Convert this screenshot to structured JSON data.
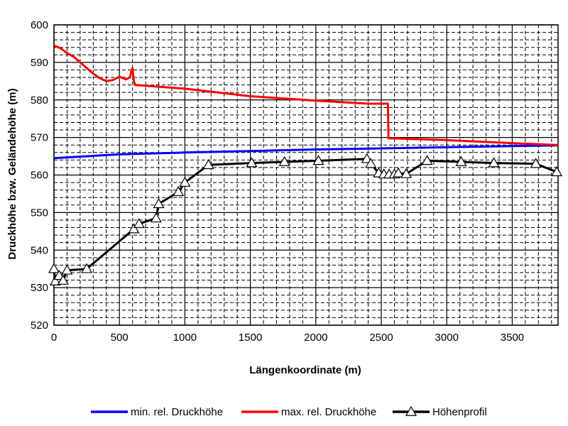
{
  "chart_data": {
    "type": "line",
    "xlabel": "Längenkoordinate (m)",
    "ylabel": "Druckhöhe  bzw. Geländehöhe (m)",
    "xlim": [
      0,
      3850
    ],
    "ylim": [
      520,
      600
    ],
    "x_ticks": [
      0,
      500,
      1000,
      1500,
      2000,
      2500,
      3000,
      3500
    ],
    "y_ticks": [
      520,
      530,
      540,
      550,
      560,
      570,
      580,
      590,
      600
    ],
    "x_tick_labels": [
      "0",
      "500",
      "1000",
      "1500",
      "2000",
      "2500",
      "3000",
      "3500"
    ],
    "y_tick_labels": [
      "520",
      "530",
      "540",
      "550",
      "560",
      "570",
      "580",
      "590",
      "600"
    ],
    "grid": true,
    "legend_position": "bottom",
    "series": [
      {
        "name": "min. rel. Druckhöhe",
        "color": "#0000ff",
        "marker": "none",
        "x": [
          0,
          500,
          1000,
          1500,
          2000,
          2500,
          3000,
          3500,
          3850
        ],
        "y": [
          564.5,
          565.5,
          566.0,
          566.4,
          566.8,
          567.1,
          567.4,
          567.7,
          567.9
        ]
      },
      {
        "name": "max. rel. Druckhöhe",
        "color": "#ff0000",
        "marker": "none",
        "x": [
          0,
          50,
          100,
          150,
          200,
          250,
          300,
          350,
          400,
          450,
          500,
          550,
          580,
          590,
          600,
          610,
          620,
          1000,
          1500,
          2000,
          2400,
          2550,
          2555,
          3000,
          3500,
          3850
        ],
        "y": [
          594.5,
          593.8,
          592.5,
          591.5,
          590.0,
          588.5,
          587.0,
          585.8,
          585.0,
          585.3,
          586.2,
          585.5,
          586.0,
          587.5,
          588.5,
          585.0,
          584.0,
          583.0,
          581.0,
          579.8,
          579.0,
          579.0,
          569.8,
          569.3,
          568.5,
          568.0
        ]
      },
      {
        "name": "Höhenprofil",
        "color": "#000000",
        "marker": "triangle",
        "x": [
          0,
          10,
          40,
          70,
          100,
          250,
          610,
          650,
          780,
          800,
          950,
          1000,
          1180,
          1510,
          1760,
          2020,
          2390,
          2420,
          2480,
          2520,
          2560,
          2600,
          2630,
          2690,
          2850,
          3110,
          3360,
          3680,
          3840
        ],
        "y": [
          535.0,
          531.7,
          533.2,
          531.9,
          534.6,
          535.0,
          545.6,
          547.0,
          548.5,
          552.3,
          555.5,
          558.0,
          562.7,
          563.2,
          563.5,
          563.8,
          564.3,
          563.0,
          560.5,
          560.2,
          560.2,
          560.2,
          560.5,
          560.3,
          563.8,
          563.5,
          563.2,
          563.0,
          560.8
        ]
      }
    ]
  }
}
